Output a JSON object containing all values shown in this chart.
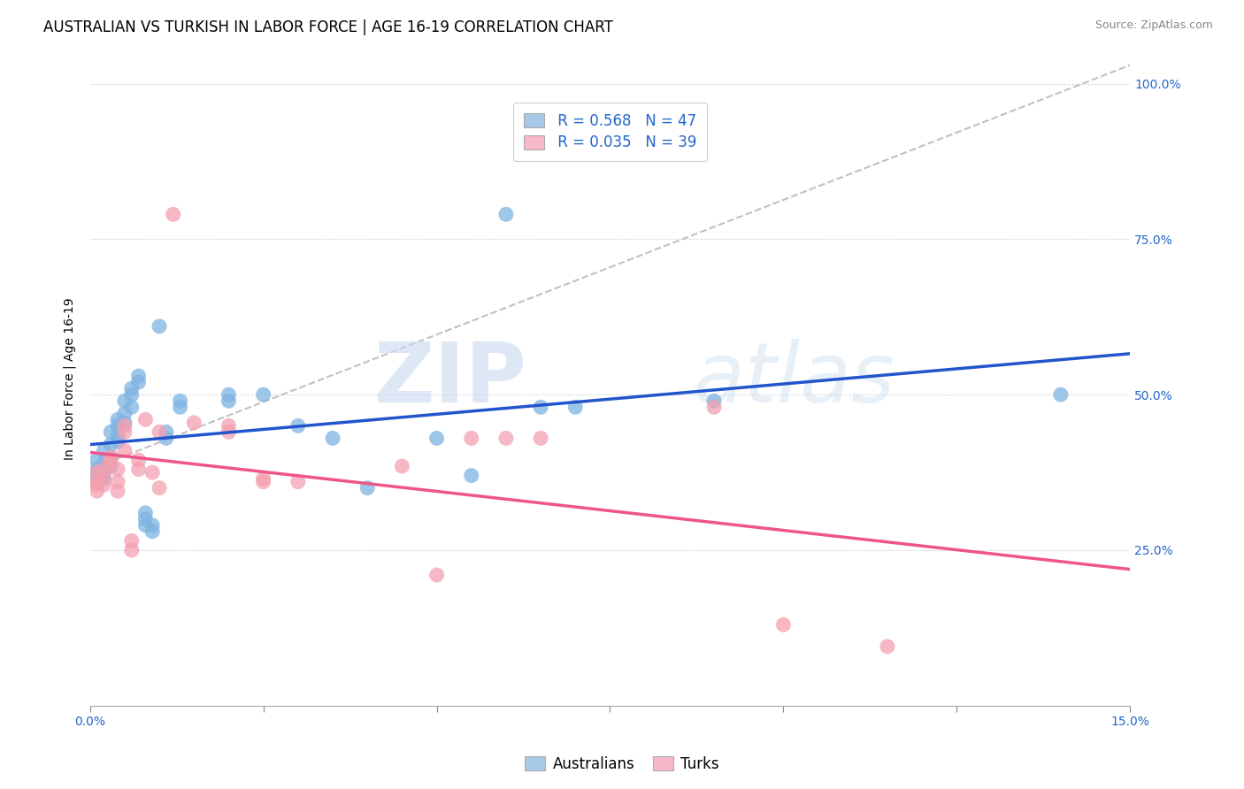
{
  "title": "AUSTRALIAN VS TURKISH IN LABOR FORCE | AGE 16-19 CORRELATION CHART",
  "source": "Source: ZipAtlas.com",
  "ylabel": "In Labor Force | Age 16-19",
  "x_min": 0.0,
  "x_max": 0.15,
  "y_min": 0.0,
  "y_max": 1.05,
  "y_ticks": [
    0.25,
    0.5,
    0.75,
    1.0
  ],
  "y_tick_labels": [
    "25.0%",
    "50.0%",
    "75.0%",
    "100.0%"
  ],
  "x_ticks": [
    0.0,
    0.025,
    0.05,
    0.075,
    0.1,
    0.125,
    0.15
  ],
  "watermark_zip": "ZIP",
  "watermark_atlas": "atlas",
  "legend_r1": "R = 0.568",
  "legend_n1": "N = 47",
  "legend_r2": "R = 0.035",
  "legend_n2": "N = 39",
  "blue_scatter_color": "#7EB4E2",
  "pink_scatter_color": "#F4A0B0",
  "blue_line_color": "#2255CC",
  "pink_line_color": "#EE5588",
  "dashed_line_color": "#BBBBBB",
  "blue_legend_color": "#A8C8E8",
  "pink_legend_color": "#F8B8C8",
  "aus_scatter": [
    [
      0.001,
      0.38
    ],
    [
      0.001,
      0.37
    ],
    [
      0.001,
      0.36
    ],
    [
      0.001,
      0.395
    ],
    [
      0.002,
      0.375
    ],
    [
      0.002,
      0.39
    ],
    [
      0.002,
      0.41
    ],
    [
      0.002,
      0.365
    ],
    [
      0.003,
      0.42
    ],
    [
      0.003,
      0.44
    ],
    [
      0.003,
      0.4
    ],
    [
      0.003,
      0.385
    ],
    [
      0.004,
      0.45
    ],
    [
      0.004,
      0.46
    ],
    [
      0.004,
      0.435
    ],
    [
      0.004,
      0.425
    ],
    [
      0.005,
      0.47
    ],
    [
      0.005,
      0.49
    ],
    [
      0.005,
      0.455
    ],
    [
      0.006,
      0.51
    ],
    [
      0.006,
      0.5
    ],
    [
      0.006,
      0.48
    ],
    [
      0.007,
      0.53
    ],
    [
      0.007,
      0.52
    ],
    [
      0.008,
      0.3
    ],
    [
      0.008,
      0.29
    ],
    [
      0.008,
      0.31
    ],
    [
      0.009,
      0.29
    ],
    [
      0.009,
      0.28
    ],
    [
      0.01,
      0.61
    ],
    [
      0.011,
      0.43
    ],
    [
      0.011,
      0.44
    ],
    [
      0.013,
      0.48
    ],
    [
      0.013,
      0.49
    ],
    [
      0.02,
      0.49
    ],
    [
      0.02,
      0.5
    ],
    [
      0.025,
      0.5
    ],
    [
      0.03,
      0.45
    ],
    [
      0.035,
      0.43
    ],
    [
      0.04,
      0.35
    ],
    [
      0.05,
      0.43
    ],
    [
      0.055,
      0.37
    ],
    [
      0.06,
      0.79
    ],
    [
      0.065,
      0.48
    ],
    [
      0.07,
      0.48
    ],
    [
      0.09,
      0.49
    ],
    [
      0.14,
      0.5
    ]
  ],
  "turk_scatter": [
    [
      0.001,
      0.36
    ],
    [
      0.001,
      0.345
    ],
    [
      0.001,
      0.375
    ],
    [
      0.001,
      0.355
    ],
    [
      0.002,
      0.37
    ],
    [
      0.002,
      0.355
    ],
    [
      0.002,
      0.38
    ],
    [
      0.003,
      0.39
    ],
    [
      0.003,
      0.395
    ],
    [
      0.003,
      0.4
    ],
    [
      0.004,
      0.36
    ],
    [
      0.004,
      0.38
    ],
    [
      0.004,
      0.345
    ],
    [
      0.005,
      0.45
    ],
    [
      0.005,
      0.44
    ],
    [
      0.005,
      0.41
    ],
    [
      0.006,
      0.265
    ],
    [
      0.006,
      0.25
    ],
    [
      0.007,
      0.38
    ],
    [
      0.007,
      0.395
    ],
    [
      0.008,
      0.46
    ],
    [
      0.009,
      0.375
    ],
    [
      0.01,
      0.35
    ],
    [
      0.01,
      0.44
    ],
    [
      0.012,
      0.79
    ],
    [
      0.015,
      0.455
    ],
    [
      0.02,
      0.44
    ],
    [
      0.02,
      0.45
    ],
    [
      0.025,
      0.365
    ],
    [
      0.025,
      0.36
    ],
    [
      0.03,
      0.36
    ],
    [
      0.045,
      0.385
    ],
    [
      0.05,
      0.21
    ],
    [
      0.055,
      0.43
    ],
    [
      0.06,
      0.43
    ],
    [
      0.065,
      0.43
    ],
    [
      0.09,
      0.48
    ],
    [
      0.1,
      0.13
    ],
    [
      0.115,
      0.095
    ]
  ],
  "title_fontsize": 12,
  "axis_label_fontsize": 10,
  "tick_fontsize": 10,
  "source_fontsize": 9,
  "legend_fontsize": 12
}
